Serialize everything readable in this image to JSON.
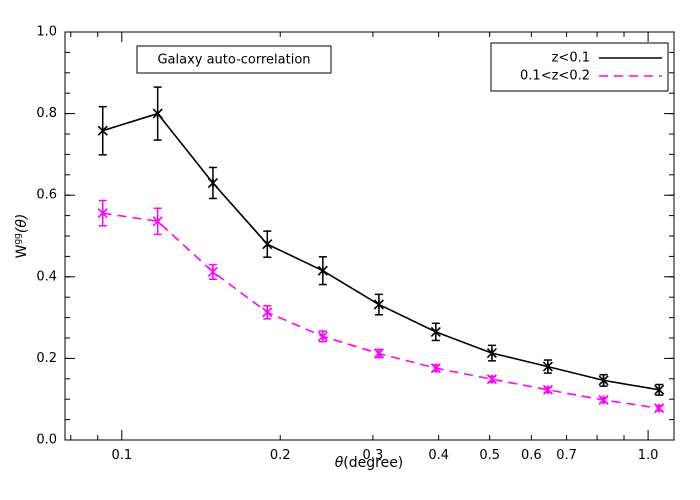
{
  "chart_data": {
    "type": "line",
    "xscale": "log",
    "xlim": [
      0.078,
      1.12
    ],
    "ylim": [
      0.0,
      1.0
    ],
    "xlabel": {
      "symbol": "θ",
      "rest": "(degree)"
    },
    "ylabel": {
      "base": "W",
      "sup": "gg",
      "arg": "(θ)"
    },
    "xticks": [
      {
        "value": 0.1,
        "label": "0.1"
      },
      {
        "value": 0.2,
        "label": "0.2"
      },
      {
        "value": 0.3,
        "label": "0.3"
      },
      {
        "value": 0.4,
        "label": "0.4"
      },
      {
        "value": 0.5,
        "label": "0.5"
      },
      {
        "value": 0.6,
        "label": "0.6"
      },
      {
        "value": 0.7,
        "label": "0.7"
      },
      {
        "value": 1.0,
        "label": "1.0"
      }
    ],
    "yticks": [
      {
        "value": 0.0,
        "label": "0.0"
      },
      {
        "value": 0.2,
        "label": "0.2"
      },
      {
        "value": 0.4,
        "label": "0.4"
      },
      {
        "value": 0.6,
        "label": "0.6"
      },
      {
        "value": 0.8,
        "label": "0.8"
      },
      {
        "value": 1.0,
        "label": "1.0"
      }
    ],
    "annotation": "Galaxy auto-correlation",
    "legend_position": "top-right",
    "series": [
      {
        "name": "z<0.1",
        "color": "#000000",
        "dash": "solid",
        "x": [
          0.092,
          0.117,
          0.149,
          0.189,
          0.241,
          0.308,
          0.395,
          0.505,
          0.645,
          0.823,
          1.05
        ],
        "y": [
          0.758,
          0.8,
          0.63,
          0.48,
          0.415,
          0.332,
          0.265,
          0.213,
          0.18,
          0.146,
          0.123
        ],
        "err": [
          0.059,
          0.065,
          0.038,
          0.032,
          0.034,
          0.025,
          0.021,
          0.019,
          0.016,
          0.014,
          0.013
        ]
      },
      {
        "name": "0.1<z<0.2",
        "color": "#ff00ff",
        "dash": "dashed",
        "x": [
          0.092,
          0.117,
          0.149,
          0.189,
          0.241,
          0.308,
          0.395,
          0.505,
          0.645,
          0.823,
          1.05
        ],
        "y": [
          0.556,
          0.536,
          0.412,
          0.313,
          0.254,
          0.212,
          0.176,
          0.149,
          0.123,
          0.098,
          0.078
        ],
        "err": [
          0.031,
          0.032,
          0.018,
          0.016,
          0.013,
          0.01,
          0.008,
          0.007,
          0.006,
          0.006,
          0.006
        ]
      }
    ]
  }
}
